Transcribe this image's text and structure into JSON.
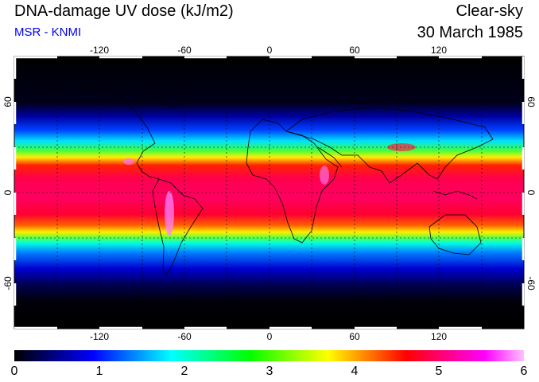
{
  "header": {
    "title": "DNA-damage UV dose (kJ/m2)",
    "subtitle": "MSR - KNMI",
    "sky_condition": "Clear-sky",
    "date": "30 March 1985"
  },
  "map": {
    "projection": "equirectangular",
    "lon_range": [
      -180,
      180
    ],
    "lat_range": [
      -90,
      90
    ],
    "lon_ticks": [
      "-120",
      "-60",
      "0",
      "60",
      "120"
    ],
    "lat_ticks": [
      "60",
      "0",
      "-60"
    ],
    "gridlines": "dashed, every 30 degrees"
  },
  "colorbar": {
    "min": 0,
    "max": 6,
    "labels": [
      "0",
      "1",
      "2",
      "3",
      "4",
      "5",
      "6"
    ],
    "colors": [
      "#000000",
      "#000080",
      "#0000ff",
      "#0080ff",
      "#00ffff",
      "#00ff80",
      "#00ff00",
      "#80ff00",
      "#ffff00",
      "#ff8000",
      "#ff0000",
      "#ff0080",
      "#ff00ff",
      "#ffc0ff"
    ]
  },
  "colors": {
    "title": "#000000",
    "subtitle": "#0000ff"
  }
}
